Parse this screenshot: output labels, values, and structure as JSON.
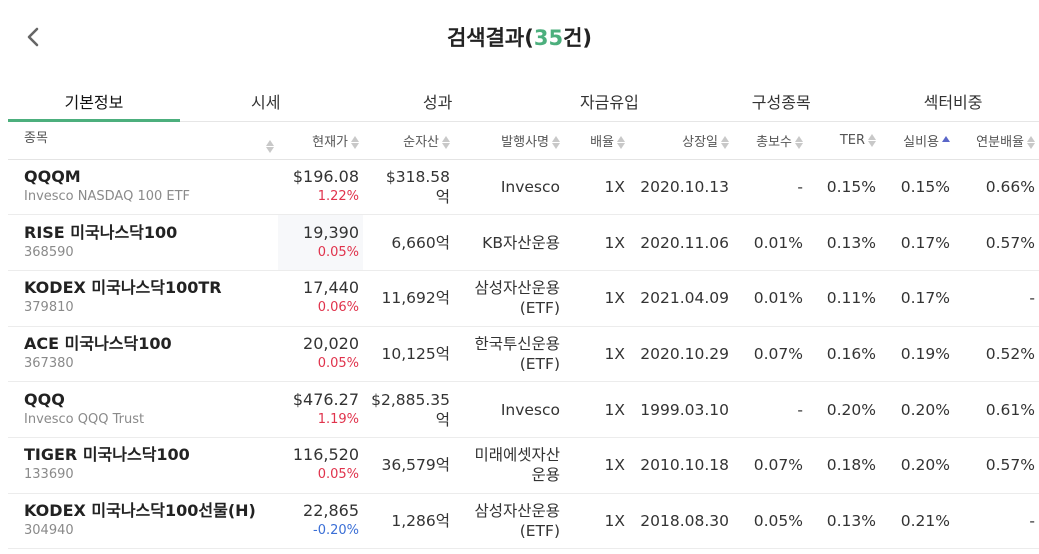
{
  "header": {
    "title_text": "검색결과(",
    "count": "35",
    "title_suffix": "건)"
  },
  "tabs": [
    {
      "label": "기본정보",
      "active": true
    },
    {
      "label": "시세"
    },
    {
      "label": "성과"
    },
    {
      "label": "자금유입"
    },
    {
      "label": "구성종목"
    },
    {
      "label": "섹터비중"
    }
  ],
  "columns": {
    "name": "종목",
    "price": "현재가",
    "aum": "순자산",
    "issuer": "발행사명",
    "leverage": "배율",
    "listed": "상장일",
    "total_fee": "총보수",
    "ter": "TER",
    "real_fee": "실비용",
    "dividend": "연분배율"
  },
  "rows": [
    {
      "name": "QQQM",
      "sub": "Invesco NASDAQ 100 ETF",
      "price": "$196.08",
      "change": "1.22%",
      "dir": "up",
      "aum1": "$318.58",
      "aum2": "억",
      "issuer1": "Invesco",
      "issuer2": "",
      "leverage": "1X",
      "listed": "2020.10.13",
      "total_fee": "-",
      "ter": "0.15%",
      "real_fee": "0.15%",
      "dividend": "0.66%"
    },
    {
      "name": "RISE 미국나스닥100",
      "sub": "368590",
      "price": "19,390",
      "change": "0.05%",
      "dir": "up",
      "aum1": "6,660억",
      "aum2": "",
      "issuer1": "KB자산운용",
      "issuer2": "",
      "leverage": "1X",
      "listed": "2020.11.06",
      "total_fee": "0.01%",
      "ter": "0.13%",
      "real_fee": "0.17%",
      "dividend": "0.57%"
    },
    {
      "name": "KODEX 미국나스닥100TR",
      "sub": "379810",
      "price": "17,440",
      "change": "0.06%",
      "dir": "up",
      "aum1": "11,692억",
      "aum2": "",
      "issuer1": "삼성자산운용",
      "issuer2": "(ETF)",
      "leverage": "1X",
      "listed": "2021.04.09",
      "total_fee": "0.01%",
      "ter": "0.11%",
      "real_fee": "0.17%",
      "dividend": "-"
    },
    {
      "name": "ACE 미국나스닥100",
      "sub": "367380",
      "price": "20,020",
      "change": "0.05%",
      "dir": "up",
      "aum1": "10,125억",
      "aum2": "",
      "issuer1": "한국투신운용",
      "issuer2": "(ETF)",
      "leverage": "1X",
      "listed": "2020.10.29",
      "total_fee": "0.07%",
      "ter": "0.16%",
      "real_fee": "0.19%",
      "dividend": "0.52%"
    },
    {
      "name": "QQQ",
      "sub": "Invesco QQQ Trust",
      "price": "$476.27",
      "change": "1.19%",
      "dir": "up",
      "aum1": "$2,885.35",
      "aum2": "억",
      "issuer1": "Invesco",
      "issuer2": "",
      "leverage": "1X",
      "listed": "1999.03.10",
      "total_fee": "-",
      "ter": "0.20%",
      "real_fee": "0.20%",
      "dividend": "0.61%"
    },
    {
      "name": "TIGER 미국나스닥100",
      "sub": "133690",
      "price": "116,520",
      "change": "0.05%",
      "dir": "up",
      "aum1": "36,579억",
      "aum2": "",
      "issuer1": "미래에셋자산",
      "issuer2": "운용",
      "leverage": "1X",
      "listed": "2010.10.18",
      "total_fee": "0.07%",
      "ter": "0.18%",
      "real_fee": "0.20%",
      "dividend": "0.57%"
    },
    {
      "name": "KODEX 미국나스닥100선물(H)",
      "sub": "304940",
      "price": "22,865",
      "change": "-0.20%",
      "dir": "down",
      "aum1": "1,286억",
      "aum2": "",
      "issuer1": "삼성자산운용",
      "issuer2": "(ETF)",
      "leverage": "1X",
      "listed": "2018.08.30",
      "total_fee": "0.05%",
      "ter": "0.13%",
      "real_fee": "0.21%",
      "dividend": "-"
    }
  ],
  "icons": {
    "back": "chevron-left-icon",
    "sort": "sort-icon"
  },
  "colors": {
    "accent": "#4caf7d",
    "up": "#e0334c",
    "down": "#3b6fd6",
    "sort_active": "#5a66c8"
  }
}
